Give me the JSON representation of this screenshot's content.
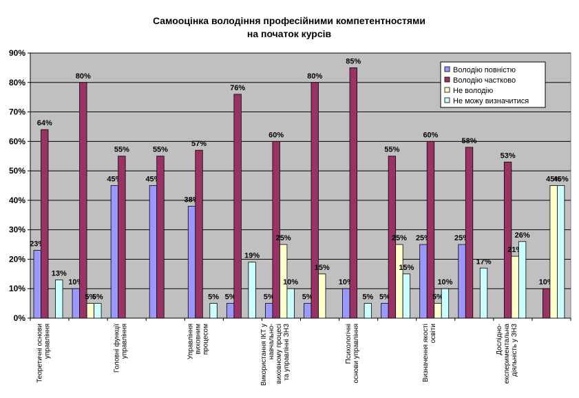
{
  "chart_data": {
    "type": "bar",
    "title": [
      "Самооцінка володіння професійними компетентностями",
      "на початок курсів"
    ],
    "xlabel": "",
    "ylabel": "",
    "ylim": [
      0,
      90
    ],
    "yticks": [
      "0%",
      "10%",
      "20%",
      "30%",
      "40%",
      "50%",
      "60%",
      "70%",
      "80%",
      "90%"
    ],
    "grid": true,
    "legend_position": "top-right",
    "categories": [
      [
        "Теоретичні основи",
        "управління"
      ],
      [],
      [
        "Головні функції",
        "управління"
      ],
      [],
      [
        "Управління",
        "виховним",
        "процесом"
      ],
      [],
      [
        "Використання ІКТ у",
        "навчально-",
        "виховному процесі",
        "та управлінні ЗНЗ"
      ],
      [],
      [
        "Психологічні",
        "основи управління"
      ],
      [],
      [
        "Визначення якості",
        "освіти"
      ],
      [],
      [
        "Дослідно-",
        "експериментальна",
        "діяльність у ЗНЗ"
      ],
      []
    ],
    "series": [
      {
        "name": "Володію повністю",
        "color": "#9999FF",
        "values": [
          23,
          10,
          45,
          45,
          38,
          5,
          5,
          5,
          10,
          5,
          25,
          25,
          0,
          0
        ],
        "labels": [
          "23%",
          "10%",
          "45%",
          "45%",
          "38%",
          "5%",
          "5%",
          "5%",
          "10%",
          "5%",
          "25%",
          "25%",
          "",
          ""
        ]
      },
      {
        "name": "Володію частково",
        "color": "#993366",
        "values": [
          64,
          80,
          55,
          55,
          57,
          76,
          60,
          80,
          85,
          55,
          60,
          58,
          53,
          10
        ],
        "labels": [
          "64%",
          "80%",
          "55%",
          "55%",
          "57%",
          "76%",
          "60%",
          "80%",
          "85%",
          "55%",
          "60%",
          "58%",
          "53%",
          "10%"
        ]
      },
      {
        "name": "Не володію",
        "color": "#FFFFCC",
        "values": [
          0,
          5,
          0,
          0,
          0,
          0,
          25,
          15,
          0,
          25,
          5,
          0,
          21,
          45
        ],
        "labels": [
          "",
          "5%",
          "",
          "",
          "",
          "",
          "25%",
          "15%",
          "",
          "25%",
          "5%",
          "",
          "21%",
          "45%"
        ]
      },
      {
        "name": "Не можу визначитися",
        "color": "#CCFFFF",
        "values": [
          13,
          5,
          0,
          0,
          5,
          19,
          10,
          0,
          5,
          15,
          10,
          17,
          26,
          45
        ],
        "labels": [
          "13%",
          "5%",
          "",
          "",
          "5%",
          "19%",
          "10%",
          "",
          "5%",
          "15%",
          "10%",
          "17%",
          "26%",
          "45%"
        ]
      }
    ]
  }
}
